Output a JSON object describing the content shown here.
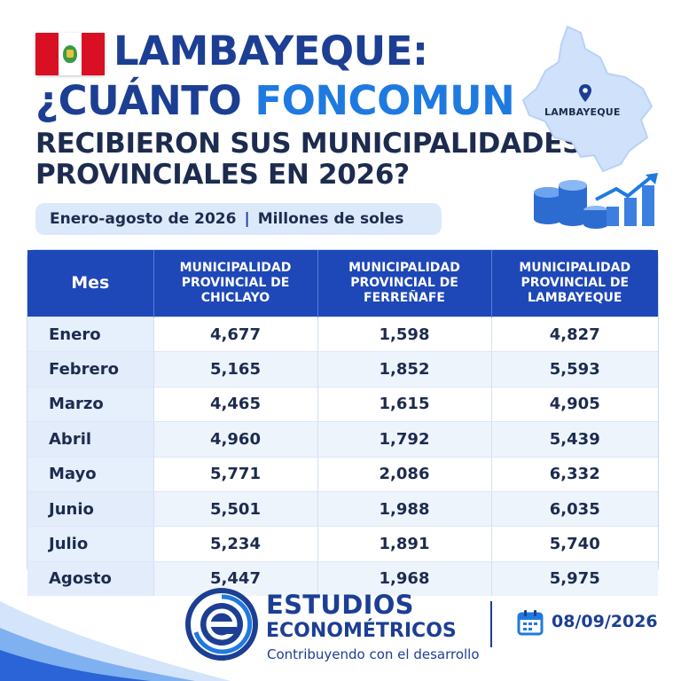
{
  "title": {
    "line1": "LAMBAYEQUE:",
    "line2_prefix": "¿CUÁNTO",
    "line2_accent": "FONCOMUN",
    "line3": "RECIBIERON SUS MUNICIPALIDADES",
    "line4": "PROVINCIALES EN 2026?"
  },
  "subtitle": {
    "period": "Enero-agosto de 2026",
    "separator": "|",
    "unit": "Millones de soles"
  },
  "map": {
    "label": "LAMBAYEQUE"
  },
  "table": {
    "headers": [
      "Mes",
      "MUNICIPALIDAD PROVINCIAL DE CHICLAYO",
      "MUNICIPALIDAD PROVINCIAL DE FERREÑAFE",
      "MUNICIPALIDAD PROVINCIAL DE LAMBAYEQUE"
    ],
    "rows": [
      [
        "Enero",
        "4,677",
        "1,598",
        "4,827"
      ],
      [
        "Febrero",
        "5,165",
        "1,852",
        "5,593"
      ],
      [
        "Marzo",
        "4,465",
        "1,615",
        "4,905"
      ],
      [
        "Abril",
        "4,960",
        "1,792",
        "5,439"
      ],
      [
        "Mayo",
        "5,771",
        "2,086",
        "6,332"
      ],
      [
        "Junio",
        "5,501",
        "1,988",
        "6,035"
      ],
      [
        "Julio",
        "5,234",
        "1,891",
        "5,740"
      ],
      [
        "Agosto",
        "5,447",
        "1,968",
        "5,975"
      ]
    ]
  },
  "footer": {
    "brand_line1": "ESTUDIOS",
    "brand_line2": "ECONOMÉTRICOS",
    "tagline": "Contribuyendo con el desarrollo",
    "date": "08/09/2026"
  },
  "colors": {
    "primary": "#1c3f94",
    "accent": "#1f7ae0",
    "header_bg": "#1e47b8",
    "pill_bg": "#dce9fb",
    "flag_red": "#d91023"
  },
  "icons": [
    "peru-flag-icon",
    "map-pin-icon",
    "coins-growth-icon",
    "estudios-logo-icon",
    "calendar-icon"
  ]
}
